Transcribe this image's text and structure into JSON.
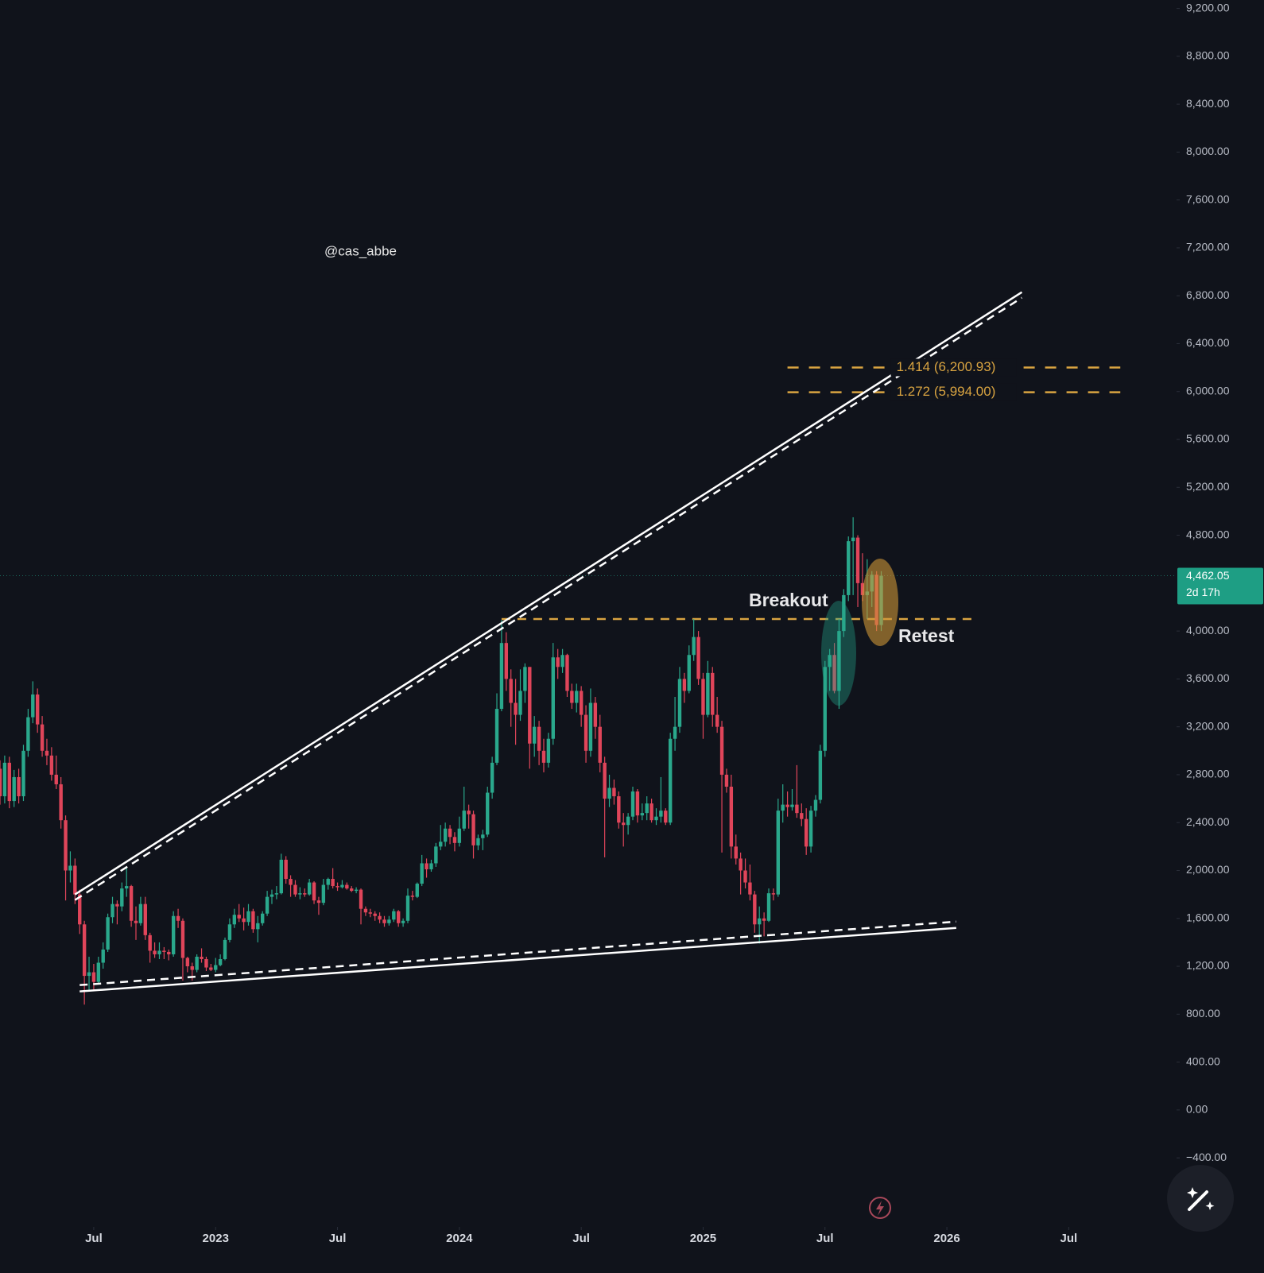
{
  "chart_data": {
    "type": "candlestick",
    "watermark": "@cas_abbe",
    "annotations": {
      "breakout": "Breakout",
      "retest": "Retest"
    },
    "up_color": "#2aa88c",
    "down_color": "#e0455a",
    "level_color": "#d9a441",
    "grid": false,
    "xlim": [
      -20,
      231
    ],
    "ylim": [
      -950,
      9270
    ],
    "xticks": [
      {
        "value": 0,
        "label": "Jul"
      },
      {
        "value": 26,
        "label": "2023"
      },
      {
        "value": 52,
        "label": "Jul"
      },
      {
        "value": 78,
        "label": "2024"
      },
      {
        "value": 104,
        "label": "Jul"
      },
      {
        "value": 130,
        "label": "2025"
      },
      {
        "value": 156,
        "label": "Jul"
      },
      {
        "value": 182,
        "label": "2026"
      },
      {
        "value": 208,
        "label": "Jul"
      }
    ],
    "yticks": [
      {
        "value": 9200,
        "label": "9,200.00"
      },
      {
        "value": 8800,
        "label": "8,800.00"
      },
      {
        "value": 8400,
        "label": "8,400.00"
      },
      {
        "value": 8000,
        "label": "8,000.00"
      },
      {
        "value": 7600,
        "label": "7,600.00"
      },
      {
        "value": 7200,
        "label": "7,200.00"
      },
      {
        "value": 6800,
        "label": "6,800.00"
      },
      {
        "value": 6400,
        "label": "6,400.00"
      },
      {
        "value": 6000,
        "label": "6,000.00"
      },
      {
        "value": 5600,
        "label": "5,600.00"
      },
      {
        "value": 5200,
        "label": "5,200.00"
      },
      {
        "value": 4800,
        "label": "4,800.00"
      },
      {
        "value": 4000,
        "label": "4,000.00"
      },
      {
        "value": 3600,
        "label": "3,600.00"
      },
      {
        "value": 3200,
        "label": "3,200.00"
      },
      {
        "value": 2800,
        "label": "2,800.00"
      },
      {
        "value": 2400,
        "label": "2,400.00"
      },
      {
        "value": 2000,
        "label": "2,000.00"
      },
      {
        "value": 1600,
        "label": "1,600.00"
      },
      {
        "value": 1200,
        "label": "1,200.00"
      },
      {
        "value": 800,
        "label": "800.00"
      },
      {
        "value": 400,
        "label": "400.00"
      },
      {
        "value": 0,
        "label": "0.00"
      },
      {
        "value": -400,
        "label": "−400.00"
      }
    ],
    "last_price_label": "4,462.05",
    "countdown": "2d 17h",
    "x": [
      -20,
      -19,
      -18,
      -17,
      -16,
      -15,
      -14,
      -13,
      -12,
      -11,
      -10,
      -9,
      -8,
      -7,
      -6,
      -5,
      -4,
      -3,
      -2,
      -1,
      0,
      1,
      2,
      3,
      4,
      5,
      6,
      7,
      8,
      9,
      10,
      11,
      12,
      13,
      14,
      15,
      16,
      17,
      18,
      19,
      20,
      21,
      22,
      23,
      24,
      25,
      26,
      27,
      28,
      29,
      30,
      31,
      32,
      33,
      34,
      35,
      36,
      37,
      38,
      39,
      40,
      41,
      42,
      43,
      44,
      45,
      46,
      47,
      48,
      49,
      50,
      51,
      52,
      53,
      54,
      55,
      56,
      57,
      58,
      59,
      60,
      61,
      62,
      63,
      64,
      65,
      66,
      67,
      68,
      69,
      70,
      71,
      72,
      73,
      74,
      75,
      76,
      77,
      78,
      79,
      80,
      81,
      82,
      83,
      84,
      85,
      86,
      87,
      88,
      89,
      90,
      91,
      92,
      93,
      94,
      95,
      96,
      97,
      98,
      99,
      100,
      101,
      102,
      103,
      104,
      105,
      106,
      107,
      108,
      109,
      110,
      111,
      112,
      113,
      114,
      115,
      116,
      117,
      118,
      119,
      120,
      121,
      122,
      123,
      124,
      125,
      126,
      127,
      128,
      129,
      130,
      131,
      132,
      133,
      134,
      135,
      136,
      137,
      138,
      139,
      140,
      141,
      142,
      143,
      144,
      145,
      146,
      147,
      148,
      149,
      150,
      151,
      152,
      153,
      154,
      155,
      156,
      157,
      158,
      159,
      160,
      161,
      162,
      163,
      164,
      165,
      166,
      167,
      168
    ],
    "open": [
      2850,
      2620,
      2900,
      2580,
      2780,
      2620,
      3000,
      3280,
      3470,
      3220,
      3000,
      2960,
      2800,
      2720,
      2420,
      2000,
      2040,
      1800,
      1550,
      1120,
      1150,
      1070,
      1230,
      1340,
      1610,
      1720,
      1700,
      1850,
      1870,
      1580,
      1560,
      1720,
      1460,
      1330,
      1300,
      1330,
      1320,
      1300,
      1620,
      1580,
      1270,
      1200,
      1170,
      1280,
      1260,
      1190,
      1170,
      1210,
      1260,
      1420,
      1550,
      1630,
      1600,
      1570,
      1660,
      1510,
      1560,
      1640,
      1780,
      1800,
      1810,
      2090,
      1930,
      1880,
      1800,
      1810,
      1800,
      1900,
      1750,
      1730,
      1880,
      1930,
      1870,
      1860,
      1880,
      1850,
      1830,
      1840,
      1680,
      1650,
      1640,
      1620,
      1590,
      1560,
      1590,
      1660,
      1560,
      1580,
      1790,
      1780,
      1890,
      2060,
      2010,
      2060,
      2200,
      2240,
      2350,
      2280,
      2230,
      2350,
      2500,
      2470,
      2210,
      2270,
      2300,
      2650,
      2900,
      3350,
      3900,
      3600,
      3400,
      3300,
      3500,
      3700,
      3060,
      3200,
      3000,
      2900,
      3100,
      3780,
      3700,
      3800,
      3500,
      3400,
      3500,
      3300,
      3000,
      3400,
      3200,
      2900,
      2600,
      2690,
      2620,
      2400,
      2380,
      2450,
      2660,
      2460,
      2480,
      2560,
      2420,
      2450,
      2500,
      2400,
      3100,
      3200,
      3600,
      3500,
      3800,
      3950,
      3600,
      3300,
      3650,
      3300,
      3200,
      2800,
      2700,
      2200,
      2100,
      2000,
      1900,
      1800,
      1550,
      1600,
      1580,
      1810,
      1800,
      2500,
      2550,
      2530,
      2550,
      2480,
      2430,
      2200,
      2500,
      2590,
      3000,
      3700,
      3800,
      3500,
      4000,
      4300,
      4750,
      4780,
      4400,
      4300,
      4330,
      4470,
      4050
    ],
    "high": [
      2920,
      2960,
      2950,
      2840,
      2850,
      3050,
      3350,
      3580,
      3520,
      3290,
      3100,
      3030,
      2960,
      2780,
      2460,
      2160,
      2100,
      1840,
      1580,
      1280,
      1220,
      1280,
      1400,
      1640,
      1780,
      1750,
      1900,
      2020,
      1880,
      1700,
      1780,
      1780,
      1480,
      1400,
      1400,
      1360,
      1340,
      1660,
      1680,
      1600,
      1280,
      1230,
      1300,
      1350,
      1280,
      1220,
      1270,
      1300,
      1440,
      1600,
      1680,
      1720,
      1690,
      1720,
      1680,
      1620,
      1660,
      1830,
      1840,
      1870,
      2140,
      2120,
      1960,
      1920,
      1860,
      1850,
      1930,
      1910,
      1780,
      1930,
      1940,
      2020,
      1900,
      1920,
      1900,
      1870,
      1860,
      1850,
      1700,
      1680,
      1660,
      1650,
      1620,
      1620,
      1680,
      1670,
      1600,
      1850,
      1830,
      1900,
      2130,
      2100,
      2090,
      2230,
      2380,
      2400,
      2380,
      2320,
      2450,
      2700,
      2550,
      2500,
      2300,
      2340,
      2700,
      2950,
      3480,
      4090,
      3990,
      3680,
      3600,
      3680,
      3730,
      3700,
      3290,
      3250,
      3100,
      3150,
      3900,
      3850,
      3850,
      3810,
      3560,
      3560,
      3540,
      3380,
      3520,
      3450,
      3300,
      2950,
      2800,
      2760,
      2660,
      2480,
      2480,
      2700,
      2680,
      2560,
      2620,
      2600,
      2520,
      2780,
      2520,
      3150,
      3450,
      3700,
      3650,
      3880,
      4100,
      4000,
      3650,
      3750,
      3700,
      3450,
      3250,
      2850,
      2800,
      2300,
      2150,
      2100,
      2050,
      1830,
      1700,
      1650,
      1850,
      1850,
      2600,
      2720,
      2660,
      2680,
      2880,
      2560,
      2520,
      2540,
      2630,
      3050,
      3750,
      3850,
      3900,
      4100,
      4350,
      4790,
      4950,
      4800,
      4650,
      4600,
      4500,
      4500,
      4500
    ],
    "low": [
      2550,
      2560,
      2520,
      2530,
      2560,
      2580,
      2950,
      3230,
      3150,
      2950,
      2880,
      2750,
      2680,
      2350,
      1750,
      1900,
      1720,
      1470,
      880,
      1000,
      1000,
      1060,
      1180,
      1320,
      1560,
      1550,
      1660,
      1780,
      1530,
      1420,
      1540,
      1420,
      1230,
      1270,
      1260,
      1260,
      1250,
      1280,
      1520,
      1080,
      1150,
      1080,
      1150,
      1230,
      1160,
      1160,
      1150,
      1200,
      1250,
      1400,
      1520,
      1570,
      1500,
      1540,
      1480,
      1400,
      1540,
      1620,
      1720,
      1760,
      1800,
      1890,
      1780,
      1780,
      1760,
      1780,
      1790,
      1720,
      1630,
      1710,
      1840,
      1850,
      1830,
      1850,
      1840,
      1820,
      1810,
      1550,
      1620,
      1610,
      1580,
      1560,
      1530,
      1540,
      1570,
      1530,
      1530,
      1560,
      1750,
      1770,
      1870,
      1940,
      1990,
      2030,
      2170,
      2200,
      2220,
      2160,
      2200,
      2330,
      2350,
      2100,
      2170,
      2170,
      2280,
      2600,
      2880,
      3330,
      3500,
      3200,
      3050,
      3250,
      3400,
      2850,
      2950,
      2880,
      2820,
      2860,
      3050,
      3600,
      3650,
      3450,
      3350,
      3320,
      3200,
      2900,
      2950,
      3100,
      2820,
      2110,
      2530,
      2550,
      2350,
      2200,
      2300,
      2420,
      2400,
      2420,
      2420,
      2400,
      2380,
      2400,
      2380,
      2380,
      3000,
      3150,
      3400,
      3480,
      3750,
      3550,
      3100,
      3280,
      3200,
      3150,
      2150,
      2650,
      2100,
      2050,
      1800,
      1850,
      1750,
      1480,
      1390,
      1450,
      1570,
      1750,
      1780,
      2400,
      2450,
      2500,
      2440,
      2370,
      2130,
      2150,
      2450,
      2560,
      2950,
      3500,
      3480,
      3350,
      3950,
      4250,
      4300,
      4200,
      4250,
      4100,
      4200,
      4000,
      4000
    ],
    "close": [
      2620,
      2900,
      2580,
      2780,
      2620,
      3000,
      3280,
      3470,
      3220,
      3000,
      2960,
      2800,
      2720,
      2420,
      2000,
      2040,
      1800,
      1550,
      1120,
      1150,
      1070,
      1230,
      1340,
      1610,
      1720,
      1700,
      1850,
      1870,
      1580,
      1560,
      1720,
      1460,
      1330,
      1300,
      1330,
      1320,
      1300,
      1620,
      1580,
      1270,
      1200,
      1170,
      1280,
      1260,
      1190,
      1170,
      1210,
      1260,
      1420,
      1550,
      1630,
      1600,
      1570,
      1660,
      1510,
      1560,
      1640,
      1780,
      1800,
      1810,
      2090,
      1930,
      1880,
      1800,
      1810,
      1800,
      1900,
      1750,
      1730,
      1880,
      1930,
      1870,
      1860,
      1880,
      1850,
      1830,
      1840,
      1680,
      1650,
      1640,
      1620,
      1590,
      1560,
      1590,
      1660,
      1560,
      1580,
      1790,
      1780,
      1890,
      2060,
      2010,
      2060,
      2200,
      2240,
      2350,
      2280,
      2230,
      2350,
      2500,
      2470,
      2210,
      2270,
      2300,
      2650,
      2900,
      3350,
      3900,
      3600,
      3400,
      3300,
      3500,
      3700,
      3060,
      3200,
      3000,
      2900,
      3100,
      3780,
      3700,
      3800,
      3500,
      3400,
      3500,
      3300,
      3000,
      3400,
      3200,
      2900,
      2600,
      2690,
      2620,
      2400,
      2380,
      2450,
      2660,
      2460,
      2480,
      2560,
      2420,
      2450,
      2500,
      2400,
      3100,
      3200,
      3600,
      3500,
      3800,
      3950,
      3600,
      3300,
      3650,
      3300,
      3200,
      2800,
      2700,
      2200,
      2100,
      2000,
      1900,
      1800,
      1550,
      1600,
      1580,
      1810,
      1800,
      2500,
      2550,
      2530,
      2550,
      2480,
      2430,
      2200,
      2500,
      2590,
      3000,
      3700,
      3800,
      3500,
      4000,
      4300,
      4750,
      4780,
      4400,
      4300,
      4330,
      4470,
      4050,
      4462.05
    ],
    "trendlines": [
      {
        "x": [
          -4,
          198
        ],
        "y": [
          1800,
          6830
        ]
      },
      {
        "x": [
          -3,
          184
        ],
        "y": [
          990,
          1520
        ]
      }
    ],
    "resistance": {
      "value": 4100,
      "x": [
        87,
        188
      ]
    },
    "fib_levels": [
      {
        "value": 6200.93,
        "label": "1.414 (6,200.93)",
        "x": [
          148,
          219
        ]
      },
      {
        "value": 5994,
        "label": "1.272 (5,994.00)",
        "x": [
          148,
          219
        ]
      }
    ]
  }
}
